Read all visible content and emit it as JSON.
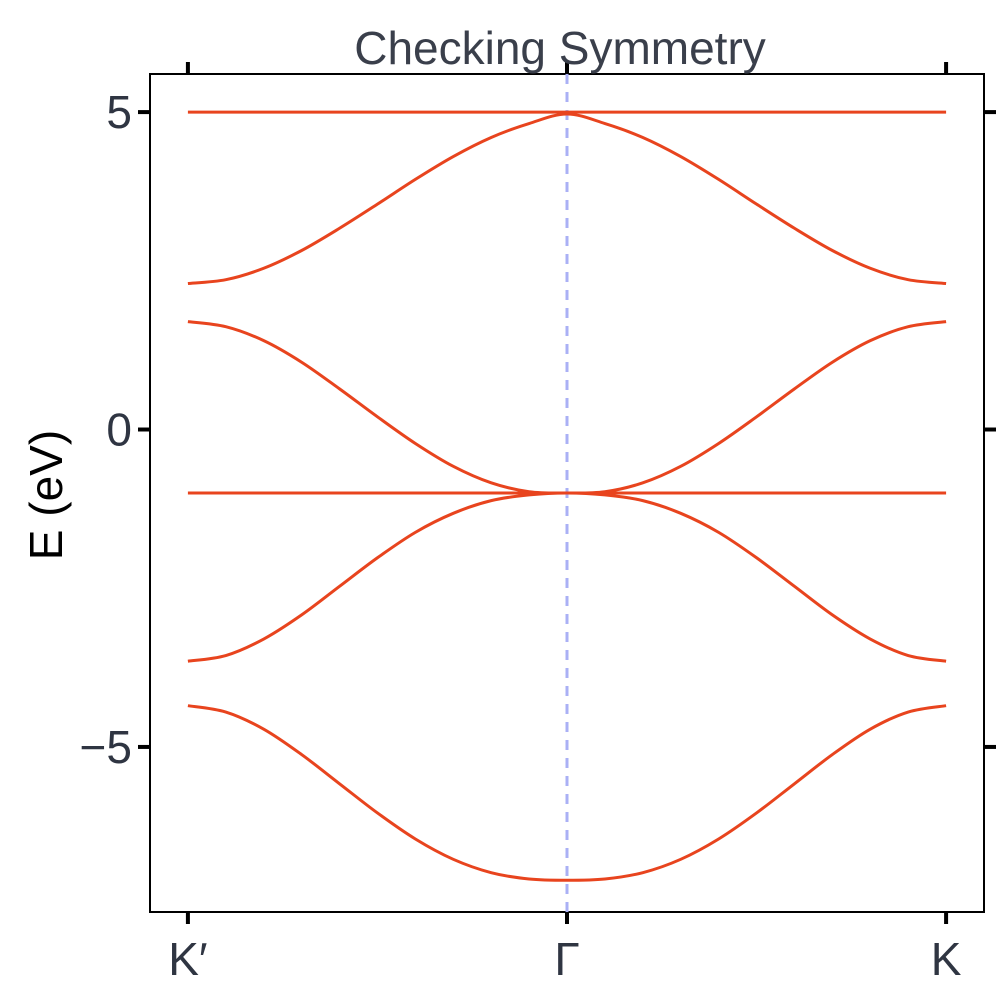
{
  "chart_data": {
    "type": "line",
    "title": "Checking Symmetry",
    "xlabel": "",
    "ylabel": "E (eV)",
    "x_ticks": [
      {
        "value": 0,
        "label": "K′"
      },
      {
        "value": 1,
        "label": "Γ"
      },
      {
        "value": 2,
        "label": "K"
      }
    ],
    "y_ticks": [
      {
        "value": 5,
        "label": "5"
      },
      {
        "value": 0,
        "label": "0"
      },
      {
        "value": -5,
        "label": "−5"
      }
    ],
    "xlim": [
      -0.1,
      2.1
    ],
    "ylim": [
      -7.6,
      5.6
    ],
    "vline": {
      "x": 1,
      "style": "dashed",
      "color": "#aab0f5"
    },
    "line_color": "#e8441e",
    "grid": false,
    "x": [
      0,
      0.1,
      0.2,
      0.3,
      0.4,
      0.5,
      0.6,
      0.7,
      0.8,
      0.9,
      1.0,
      1.1,
      1.2,
      1.3,
      1.4,
      1.5,
      1.6,
      1.7,
      1.8,
      1.9,
      2.0
    ],
    "series": [
      {
        "values": [
          5.0,
          5.0,
          5.0,
          5.0,
          5.0,
          5.0,
          5.0,
          5.0,
          5.0,
          5.0,
          5.0,
          5.0,
          5.0,
          5.0,
          5.0,
          5.0,
          5.0,
          5.0,
          5.0,
          5.0,
          5.0
        ]
      },
      {
        "values": [
          2.3,
          2.36,
          2.54,
          2.82,
          3.17,
          3.55,
          3.94,
          4.3,
          4.6,
          4.82,
          4.97,
          4.82,
          4.6,
          4.3,
          3.94,
          3.55,
          3.17,
          2.82,
          2.54,
          2.36,
          2.3
        ]
      },
      {
        "values": [
          1.7,
          1.62,
          1.4,
          1.06,
          0.64,
          0.2,
          -0.22,
          -0.58,
          -0.84,
          -0.98,
          -1.0,
          -0.98,
          -0.84,
          -0.58,
          -0.22,
          0.2,
          0.64,
          1.06,
          1.4,
          1.62,
          1.7
        ]
      },
      {
        "values": [
          -1.0,
          -1.0,
          -1.0,
          -1.0,
          -1.0,
          -1.0,
          -1.0,
          -1.0,
          -1.0,
          -1.0,
          -1.0,
          -1.0,
          -1.0,
          -1.0,
          -1.0,
          -1.0,
          -1.0,
          -1.0,
          -1.0,
          -1.0,
          -1.0
        ]
      },
      {
        "values": [
          -3.65,
          -3.56,
          -3.3,
          -2.92,
          -2.47,
          -2.02,
          -1.62,
          -1.32,
          -1.12,
          -1.03,
          -1.0,
          -1.03,
          -1.12,
          -1.32,
          -1.62,
          -2.02,
          -2.47,
          -2.92,
          -3.3,
          -3.56,
          -3.65
        ]
      },
      {
        "values": [
          -4.35,
          -4.45,
          -4.72,
          -5.12,
          -5.58,
          -6.04,
          -6.45,
          -6.77,
          -6.98,
          -7.08,
          -7.1,
          -7.08,
          -6.98,
          -6.77,
          -6.45,
          -6.04,
          -5.58,
          -5.12,
          -4.72,
          -4.45,
          -4.35
        ]
      }
    ]
  }
}
